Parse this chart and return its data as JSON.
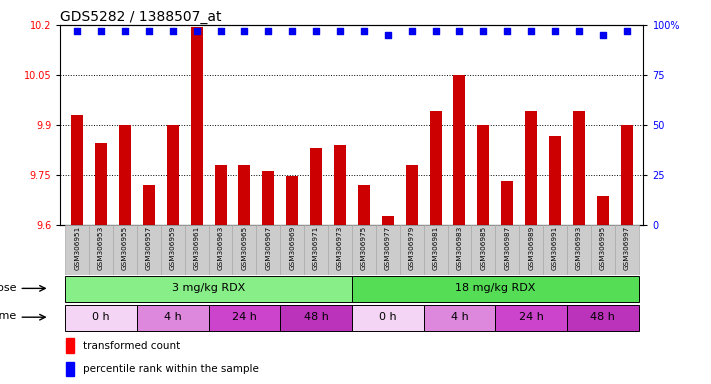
{
  "title": "GDS5282 / 1388507_at",
  "samples": [
    "GSM306951",
    "GSM306953",
    "GSM306955",
    "GSM306957",
    "GSM306959",
    "GSM306961",
    "GSM306963",
    "GSM306965",
    "GSM306967",
    "GSM306969",
    "GSM306971",
    "GSM306973",
    "GSM306975",
    "GSM306977",
    "GSM306979",
    "GSM306981",
    "GSM306983",
    "GSM306985",
    "GSM306987",
    "GSM306989",
    "GSM306991",
    "GSM306993",
    "GSM306995",
    "GSM306997"
  ],
  "bar_values": [
    9.93,
    9.845,
    9.9,
    9.72,
    9.9,
    10.195,
    9.78,
    9.78,
    9.76,
    9.745,
    9.83,
    9.84,
    9.72,
    9.625,
    9.78,
    9.94,
    10.05,
    9.9,
    9.73,
    9.94,
    9.865,
    9.94,
    9.685,
    9.9
  ],
  "percentile_values": [
    97,
    97,
    97,
    97,
    97,
    97,
    97,
    97,
    97,
    97,
    97,
    97,
    97,
    95,
    97,
    97,
    97,
    97,
    97,
    97,
    97,
    97,
    95,
    97
  ],
  "ylim_left": [
    9.6,
    10.2
  ],
  "ylim_right": [
    0,
    100
  ],
  "yticks_left": [
    9.6,
    9.75,
    9.9,
    10.05,
    10.2
  ],
  "yticks_right": [
    0,
    25,
    50,
    75,
    100
  ],
  "bar_color": "#cc0000",
  "dot_color": "#0000ee",
  "dose_groups": [
    {
      "label": "3 mg/kg RDX",
      "start": 0,
      "end": 12,
      "color": "#88ee88"
    },
    {
      "label": "18 mg/kg RDX",
      "start": 12,
      "end": 24,
      "color": "#55dd55"
    }
  ],
  "time_groups": [
    {
      "label": "0 h",
      "start": 0,
      "end": 3,
      "color": "#f5d5f5"
    },
    {
      "label": "4 h",
      "start": 3,
      "end": 6,
      "color": "#dd88dd"
    },
    {
      "label": "24 h",
      "start": 6,
      "end": 9,
      "color": "#cc44cc"
    },
    {
      "label": "48 h",
      "start": 9,
      "end": 12,
      "color": "#bb33bb"
    },
    {
      "label": "0 h",
      "start": 12,
      "end": 15,
      "color": "#f5d5f5"
    },
    {
      "label": "4 h",
      "start": 15,
      "end": 18,
      "color": "#dd88dd"
    },
    {
      "label": "24 h",
      "start": 18,
      "end": 21,
      "color": "#cc44cc"
    },
    {
      "label": "48 h",
      "start": 21,
      "end": 24,
      "color": "#bb33bb"
    }
  ],
  "xtick_bg": "#cccccc",
  "title_fontsize": 10,
  "bar_width": 0.5
}
